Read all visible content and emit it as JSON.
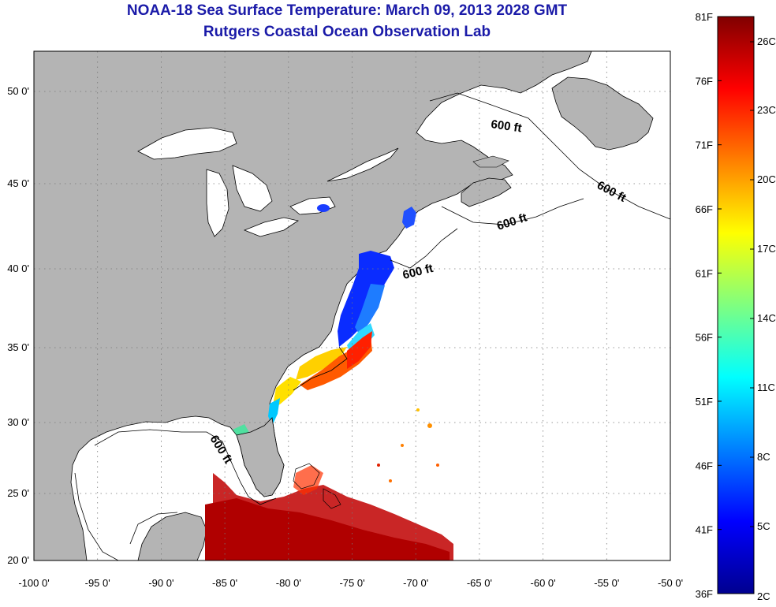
{
  "header": {
    "title": "NOAA-18 Sea Surface Temperature:  March 09, 2013 2028 GMT",
    "subtitle": "Rutgers Coastal Ocean Observation Lab"
  },
  "map": {
    "lat_labels": [
      "50 0'",
      "45 0'",
      "40 0'",
      "35 0'",
      "30 0'",
      "25 0'",
      "20 0'"
    ],
    "lon_labels": [
      "-100 0'",
      "-95 0'",
      "-90 0'",
      "-85 0'",
      "-80 0'",
      "-75 0'",
      "-70 0'",
      "-65 0'",
      "-60 0'",
      "-55 0'",
      "-50 0'"
    ],
    "depth_labels": [
      "600 ft",
      "600 ft",
      "600 ft",
      "600 ft",
      "600 ft"
    ],
    "colors": {
      "land": "#b4b4b4",
      "ocean": "#ffffff",
      "grid": "#777777"
    }
  },
  "colorbar": {
    "fahrenheit_labels": [
      "81F",
      "76F",
      "71F",
      "66F",
      "61F",
      "56F",
      "51F",
      "46F",
      "41F",
      "36F"
    ],
    "celsius_labels": [
      "26C",
      "23C",
      "20C",
      "17C",
      "14C",
      "11C",
      "8C",
      "5C",
      "2C"
    ],
    "colormap": "jet"
  }
}
